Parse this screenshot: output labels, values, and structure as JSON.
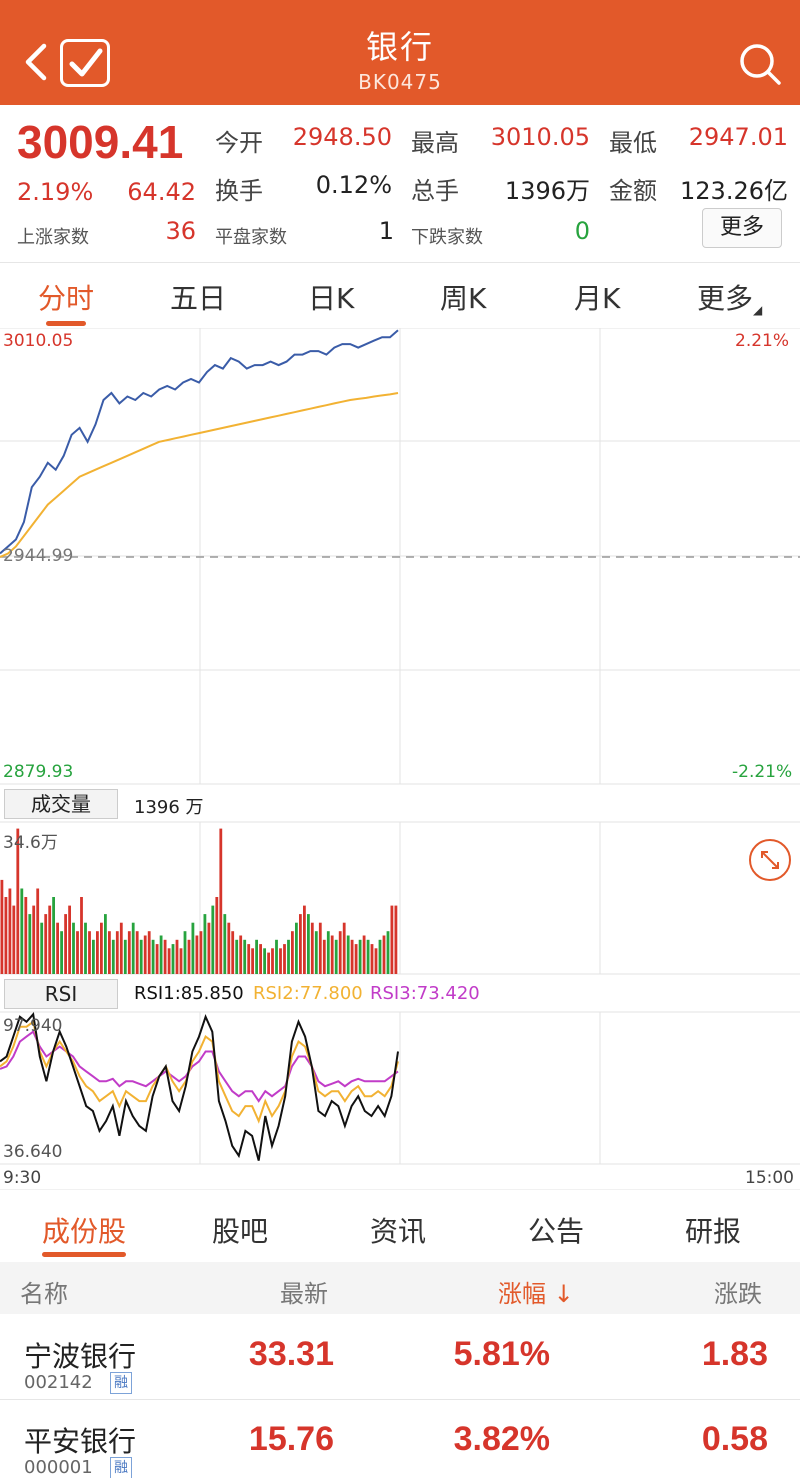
{
  "header": {
    "title": "银行",
    "code": "BK0475"
  },
  "quote": {
    "price": "3009.41",
    "change_pct": "2.19%",
    "change_abs": "64.42",
    "open_label": "今开",
    "open_value": "2948.50",
    "high_label": "最高",
    "high_value": "3010.05",
    "low_label": "最低",
    "low_value": "2947.01",
    "turnover_label": "换手",
    "turnover_value": "0.12%",
    "volume_label": "总手",
    "volume_value": "1396万",
    "amount_label": "金额",
    "amount_value": "123.26亿",
    "up_label": "上涨家数",
    "up_value": "36",
    "flat_label": "平盘家数",
    "flat_value": "1",
    "down_label": "下跌家数",
    "down_value": "0",
    "more_label": "更多"
  },
  "chart_tabs": [
    "分时",
    "五日",
    "日K",
    "周K",
    "月K",
    "更多"
  ],
  "colors": {
    "brand": "#e2592a",
    "up": "#d6352b",
    "down": "#27a33e",
    "price_line": "#3a5ca8",
    "avg_line": "#f2b233",
    "rsi1": "#111111",
    "rsi2": "#f2b233",
    "rsi3": "#c13cc8"
  },
  "chart_data": {
    "type": "line",
    "title": "银行 BK0475 分时",
    "price_axis": {
      "high": "3010.05",
      "base": "2944.99",
      "low": "2879.93",
      "high_pct": "2.21%",
      "low_pct": "-2.21%"
    },
    "ylim": [
      2879.93,
      3010.05
    ],
    "base": 2944.99,
    "time_labels": {
      "start": "9:30",
      "end": "15:00"
    },
    "total_minutes": 240,
    "price_series": [
      2946,
      2948,
      2950,
      2955,
      2965,
      2968,
      2972,
      2970,
      2974,
      2980,
      2982,
      2978,
      2983,
      2990,
      2992,
      2989,
      2991,
      2990,
      2992,
      2991,
      2993,
      2994,
      2993,
      2995,
      2996,
      2995,
      2998,
      3000,
      2999,
      3002,
      3001,
      2999,
      3000,
      3000,
      3001,
      3000,
      3001,
      3003,
      3003,
      3004,
      3004,
      3003,
      3005,
      3006,
      3006,
      3005,
      3006,
      3007,
      3008,
      3008,
      3010
    ],
    "avg_series": [
      2945,
      2946,
      2948,
      2951,
      2954,
      2957,
      2960,
      2962,
      2964,
      2966,
      2968,
      2969,
      2970,
      2971,
      2972,
      2973,
      2974,
      2975,
      2976,
      2977,
      2978,
      2978.5,
      2979,
      2979.5,
      2980,
      2980.5,
      2981,
      2981.5,
      2982,
      2982.5,
      2983,
      2983.5,
      2984,
      2984.5,
      2985,
      2985.5,
      2986,
      2986.5,
      2987,
      2987.5,
      2988,
      2988.5,
      2989,
      2989.5,
      2990,
      2990.3,
      2990.6,
      2991,
      2991.3,
      2991.6,
      2992
    ],
    "volume": {
      "label": "成交量",
      "total": "1396 万",
      "max_label": "34.6万",
      "max": 34.6,
      "values": [
        22,
        18,
        20,
        16,
        34,
        20,
        18,
        14,
        16,
        20,
        12,
        14,
        16,
        18,
        12,
        10,
        14,
        16,
        12,
        10,
        18,
        12,
        10,
        8,
        10,
        12,
        14,
        10,
        8,
        10,
        12,
        8,
        10,
        12,
        10,
        8,
        9,
        10,
        8,
        7,
        9,
        8,
        6,
        7,
        8,
        6,
        10,
        8,
        12,
        9,
        10,
        14,
        12,
        16,
        18,
        34,
        14,
        12,
        10,
        8,
        9,
        8,
        7,
        6,
        8,
        7,
        6,
        5,
        6,
        8,
        6,
        7,
        8,
        10,
        12,
        14,
        16,
        14,
        12,
        10,
        12,
        8,
        10,
        9,
        8,
        10,
        12,
        9,
        8,
        7,
        8,
        9,
        8,
        7,
        6,
        8,
        9,
        10,
        16,
        16
      ],
      "up": [
        1,
        1,
        1,
        1,
        1,
        0,
        1,
        0,
        1,
        1,
        0,
        1,
        1,
        0,
        1,
        0,
        1,
        1,
        0,
        1,
        1,
        0,
        1,
        0,
        1,
        1,
        0,
        1,
        0,
        1,
        1,
        0,
        1,
        0,
        1,
        0,
        1,
        1,
        0,
        1,
        0,
        1,
        1,
        0,
        1,
        1,
        0,
        1,
        0,
        1,
        1,
        0,
        1,
        0,
        1,
        1,
        0,
        1,
        1,
        0,
        1,
        0,
        1,
        1,
        0,
        1,
        0,
        1,
        1,
        0,
        1,
        1,
        0,
        1,
        0,
        1,
        1,
        0,
        1,
        0,
        1,
        1,
        0,
        1,
        0,
        1,
        1,
        0,
        1,
        1,
        0,
        1,
        0,
        1,
        1,
        0,
        1,
        0,
        1,
        1
      ]
    },
    "rsi": {
      "label": "RSI",
      "rsi1_text": "RSI1:85.850",
      "rsi2_text": "RSI2:77.800",
      "rsi3_text": "RSI3:73.420",
      "max_label": "97.940",
      "min_label": "36.640",
      "ylim": [
        36.64,
        97.94
      ],
      "rsi1": [
        78,
        80,
        88,
        96,
        94,
        97,
        80,
        70,
        82,
        90,
        84,
        76,
        68,
        60,
        58,
        50,
        54,
        60,
        48,
        62,
        56,
        52,
        50,
        64,
        72,
        76,
        62,
        58,
        68,
        82,
        88,
        96,
        90,
        62,
        54,
        44,
        40,
        50,
        48,
        38,
        56,
        44,
        52,
        64,
        86,
        94,
        88,
        76,
        58,
        56,
        62,
        60,
        52,
        60,
        64,
        58,
        56,
        60,
        56,
        64,
        82
      ],
      "rsi2": [
        76,
        78,
        84,
        92,
        92,
        94,
        82,
        76,
        82,
        86,
        82,
        78,
        72,
        68,
        66,
        62,
        64,
        66,
        60,
        66,
        64,
        62,
        62,
        68,
        72,
        76,
        70,
        66,
        70,
        78,
        82,
        88,
        86,
        70,
        64,
        58,
        56,
        60,
        60,
        54,
        62,
        56,
        60,
        66,
        80,
        86,
        84,
        76,
        66,
        64,
        66,
        66,
        62,
        66,
        68,
        64,
        64,
        66,
        64,
        68,
        78
      ],
      "rsi3": [
        75,
        76,
        80,
        86,
        88,
        90,
        84,
        80,
        82,
        84,
        82,
        80,
        76,
        74,
        72,
        70,
        70,
        71,
        68,
        70,
        70,
        69,
        68,
        70,
        72,
        74,
        72,
        70,
        72,
        76,
        78,
        82,
        82,
        74,
        70,
        66,
        64,
        66,
        66,
        62,
        66,
        64,
        66,
        68,
        76,
        80,
        80,
        76,
        70,
        68,
        69,
        70,
        68,
        70,
        71,
        70,
        70,
        70,
        70,
        72,
        74
      ]
    }
  },
  "bottom_tabs": [
    "成份股",
    "股吧",
    "资讯",
    "公告",
    "研报"
  ],
  "table": {
    "headers": {
      "name": "名称",
      "latest": "最新",
      "change_pct": "涨幅",
      "sort_arrow": "↓",
      "change": "涨跌"
    },
    "rows": [
      {
        "name": "宁波银行",
        "code": "002142",
        "tag": "融",
        "latest": "33.31",
        "change_pct": "5.81%",
        "change": "1.83"
      },
      {
        "name": "平安银行",
        "code": "000001",
        "tag": "融",
        "latest": "15.76",
        "change_pct": "3.82%",
        "change": "0.58"
      }
    ]
  }
}
